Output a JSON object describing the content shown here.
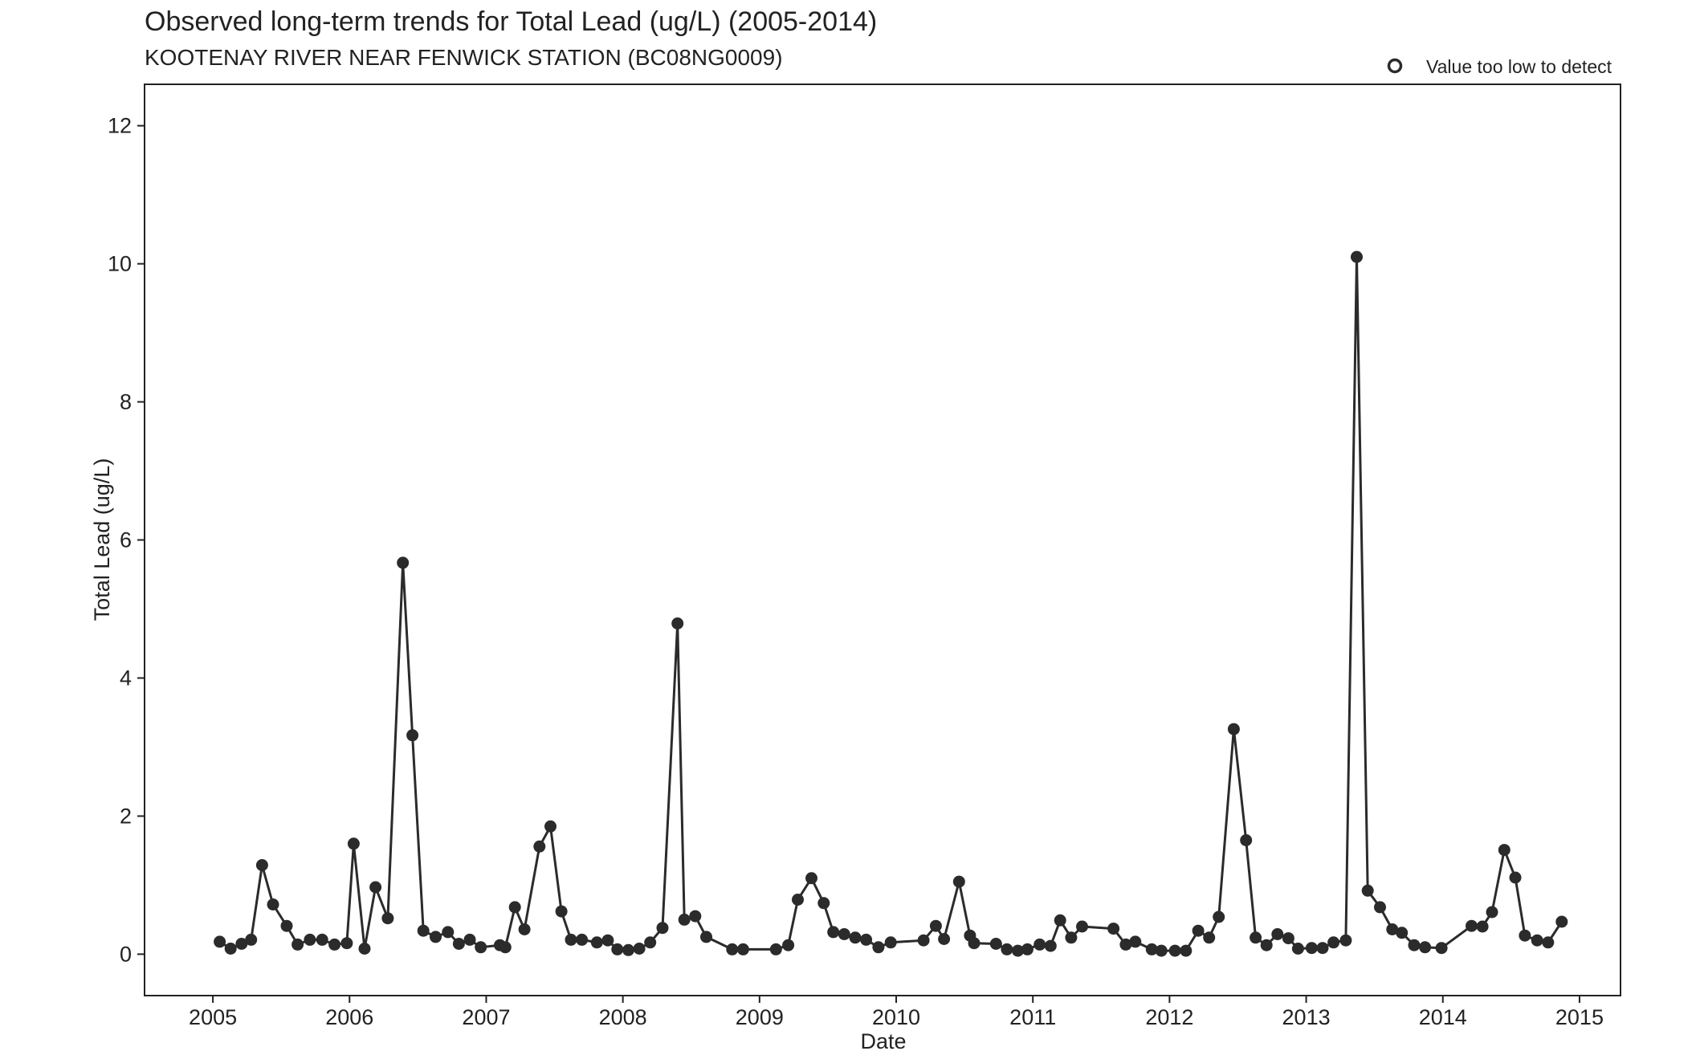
{
  "chart_data": {
    "type": "line",
    "title": "Observed long-term trends for Total Lead (ug/L) (2005-2014)",
    "subtitle": "KOOTENAY RIVER NEAR FENWICK STATION (BC08NG0009)",
    "xlabel": "Date",
    "ylabel": "Total Lead (ug/L)",
    "xlim": [
      2004.5,
      2015.3
    ],
    "ylim": [
      -0.6,
      12.6
    ],
    "x_ticks": [
      2005,
      2006,
      2007,
      2008,
      2009,
      2010,
      2011,
      2012,
      2013,
      2014,
      2015
    ],
    "y_ticks": [
      0,
      2,
      4,
      6,
      8,
      10,
      12
    ],
    "grid": false,
    "legend": {
      "position": "top-right",
      "entries": [
        {
          "label": "Value too low to detect",
          "marker": "open-circle"
        }
      ]
    },
    "series": [
      {
        "marker": "filled-circle",
        "color": "#2b2b2b",
        "points": [
          {
            "x": 2005.05,
            "y": 0.18
          },
          {
            "x": 2005.13,
            "y": 0.08
          },
          {
            "x": 2005.21,
            "y": 0.15
          },
          {
            "x": 2005.28,
            "y": 0.21
          },
          {
            "x": 2005.36,
            "y": 1.29
          },
          {
            "x": 2005.44,
            "y": 0.72
          },
          {
            "x": 2005.54,
            "y": 0.41
          },
          {
            "x": 2005.62,
            "y": 0.14
          },
          {
            "x": 2005.71,
            "y": 0.21
          },
          {
            "x": 2005.8,
            "y": 0.21
          },
          {
            "x": 2005.89,
            "y": 0.14
          },
          {
            "x": 2005.98,
            "y": 0.16
          },
          {
            "x": 2006.03,
            "y": 1.6
          },
          {
            "x": 2006.11,
            "y": 0.08
          },
          {
            "x": 2006.19,
            "y": 0.97
          },
          {
            "x": 2006.28,
            "y": 0.52
          },
          {
            "x": 2006.39,
            "y": 5.67
          },
          {
            "x": 2006.46,
            "y": 3.17
          },
          {
            "x": 2006.54,
            "y": 0.34
          },
          {
            "x": 2006.63,
            "y": 0.25
          },
          {
            "x": 2006.72,
            "y": 0.32
          },
          {
            "x": 2006.8,
            "y": 0.15
          },
          {
            "x": 2006.88,
            "y": 0.21
          },
          {
            "x": 2006.96,
            "y": 0.1
          },
          {
            "x": 2007.1,
            "y": 0.13
          },
          {
            "x": 2007.14,
            "y": 0.1
          },
          {
            "x": 2007.21,
            "y": 0.68
          },
          {
            "x": 2007.28,
            "y": 0.36
          },
          {
            "x": 2007.39,
            "y": 1.56
          },
          {
            "x": 2007.47,
            "y": 1.85
          },
          {
            "x": 2007.55,
            "y": 0.62
          },
          {
            "x": 2007.62,
            "y": 0.21
          },
          {
            "x": 2007.7,
            "y": 0.21
          },
          {
            "x": 2007.81,
            "y": 0.17
          },
          {
            "x": 2007.89,
            "y": 0.2
          },
          {
            "x": 2007.96,
            "y": 0.07
          },
          {
            "x": 2008.04,
            "y": 0.06
          },
          {
            "x": 2008.12,
            "y": 0.08
          },
          {
            "x": 2008.2,
            "y": 0.17
          },
          {
            "x": 2008.29,
            "y": 0.38
          },
          {
            "x": 2008.4,
            "y": 4.79
          },
          {
            "x": 2008.45,
            "y": 0.5
          },
          {
            "x": 2008.53,
            "y": 0.55
          },
          {
            "x": 2008.61,
            "y": 0.25
          },
          {
            "x": 2008.8,
            "y": 0.07
          },
          {
            "x": 2008.88,
            "y": 0.07
          },
          {
            "x": 2009.12,
            "y": 0.07
          },
          {
            "x": 2009.21,
            "y": 0.13
          },
          {
            "x": 2009.28,
            "y": 0.79
          },
          {
            "x": 2009.38,
            "y": 1.1
          },
          {
            "x": 2009.47,
            "y": 0.74
          },
          {
            "x": 2009.54,
            "y": 0.32
          },
          {
            "x": 2009.62,
            "y": 0.29
          },
          {
            "x": 2009.7,
            "y": 0.24
          },
          {
            "x": 2009.78,
            "y": 0.21
          },
          {
            "x": 2009.87,
            "y": 0.1
          },
          {
            "x": 2009.96,
            "y": 0.17
          },
          {
            "x": 2010.2,
            "y": 0.2
          },
          {
            "x": 2010.29,
            "y": 0.41
          },
          {
            "x": 2010.35,
            "y": 0.22
          },
          {
            "x": 2010.46,
            "y": 1.05
          },
          {
            "x": 2010.54,
            "y": 0.27
          },
          {
            "x": 2010.57,
            "y": 0.16
          },
          {
            "x": 2010.73,
            "y": 0.15
          },
          {
            "x": 2010.81,
            "y": 0.07
          },
          {
            "x": 2010.89,
            "y": 0.05
          },
          {
            "x": 2010.96,
            "y": 0.07
          },
          {
            "x": 2011.05,
            "y": 0.14
          },
          {
            "x": 2011.13,
            "y": 0.12
          },
          {
            "x": 2011.2,
            "y": 0.49
          },
          {
            "x": 2011.28,
            "y": 0.24
          },
          {
            "x": 2011.36,
            "y": 0.4
          },
          {
            "x": 2011.59,
            "y": 0.37
          },
          {
            "x": 2011.68,
            "y": 0.14
          },
          {
            "x": 2011.75,
            "y": 0.18
          },
          {
            "x": 2011.87,
            "y": 0.07
          },
          {
            "x": 2011.94,
            "y": 0.05
          },
          {
            "x": 2012.04,
            "y": 0.05
          },
          {
            "x": 2012.12,
            "y": 0.05
          },
          {
            "x": 2012.21,
            "y": 0.34
          },
          {
            "x": 2012.29,
            "y": 0.24
          },
          {
            "x": 2012.36,
            "y": 0.54
          },
          {
            "x": 2012.47,
            "y": 3.26
          },
          {
            "x": 2012.56,
            "y": 1.65
          },
          {
            "x": 2012.63,
            "y": 0.24
          },
          {
            "x": 2012.71,
            "y": 0.13
          },
          {
            "x": 2012.79,
            "y": 0.29
          },
          {
            "x": 2012.87,
            "y": 0.23
          },
          {
            "x": 2012.94,
            "y": 0.08
          },
          {
            "x": 2013.04,
            "y": 0.09
          },
          {
            "x": 2013.12,
            "y": 0.09
          },
          {
            "x": 2013.2,
            "y": 0.17
          },
          {
            "x": 2013.29,
            "y": 0.2
          },
          {
            "x": 2013.37,
            "y": 10.1
          },
          {
            "x": 2013.45,
            "y": 0.92
          },
          {
            "x": 2013.54,
            "y": 0.68
          },
          {
            "x": 2013.63,
            "y": 0.36
          },
          {
            "x": 2013.7,
            "y": 0.31
          },
          {
            "x": 2013.79,
            "y": 0.13
          },
          {
            "x": 2013.87,
            "y": 0.1
          },
          {
            "x": 2013.99,
            "y": 0.09
          },
          {
            "x": 2014.21,
            "y": 0.41
          },
          {
            "x": 2014.29,
            "y": 0.4
          },
          {
            "x": 2014.36,
            "y": 0.61
          },
          {
            "x": 2014.45,
            "y": 1.51
          },
          {
            "x": 2014.53,
            "y": 1.11
          },
          {
            "x": 2014.6,
            "y": 0.27
          },
          {
            "x": 2014.69,
            "y": 0.2
          },
          {
            "x": 2014.77,
            "y": 0.17
          },
          {
            "x": 2014.87,
            "y": 0.47
          }
        ]
      }
    ]
  }
}
